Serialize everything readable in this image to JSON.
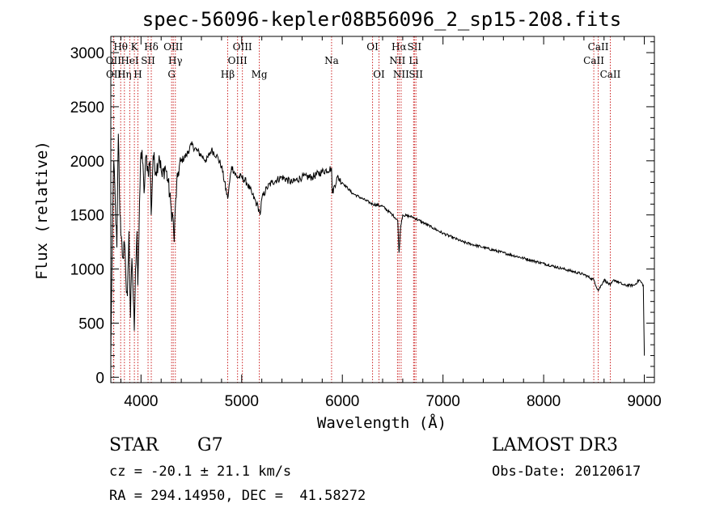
{
  "colors": {
    "spectrum": "#000000",
    "line_marker": "#cc2222",
    "axis": "#000000",
    "background": "#ffffff"
  },
  "chart_data": {
    "type": "line",
    "title": "spec-56096-kepler08B56096_2_sp15-208.fits",
    "xlabel": "Wavelength (Å)",
    "ylabel": "Flux (relative)",
    "xlim": [
      3700,
      9100
    ],
    "ylim": [
      -50,
      3150
    ],
    "xticks": [
      4000,
      5000,
      6000,
      7000,
      8000,
      9000
    ],
    "xtick_labels": [
      "4000",
      "5000",
      "6000",
      "7000",
      "8000",
      "9000"
    ],
    "yticks": [
      0,
      500,
      1000,
      1500,
      2000,
      2500,
      3000
    ],
    "ytick_labels": [
      "0",
      "500",
      "1000",
      "1500",
      "2000",
      "2500",
      "3000"
    ],
    "series": [
      {
        "name": "flux",
        "x": [
          3700,
          3715,
          3730,
          3745,
          3760,
          3775,
          3790,
          3805,
          3820,
          3835,
          3850,
          3865,
          3880,
          3895,
          3910,
          3925,
          3933,
          3945,
          3960,
          3968,
          3980,
          3995,
          4010,
          4030,
          4050,
          4070,
          4090,
          4101,
          4120,
          4150,
          4180,
          4210,
          4240,
          4270,
          4300,
          4320,
          4330,
          4345,
          4370,
          4400,
          4450,
          4500,
          4550,
          4600,
          4650,
          4700,
          4750,
          4800,
          4861,
          4900,
          4950,
          5000,
          5050,
          5100,
          5150,
          5172,
          5183,
          5200,
          5250,
          5300,
          5400,
          5500,
          5600,
          5700,
          5800,
          5893,
          5900,
          5950,
          6000,
          6100,
          6200,
          6300,
          6400,
          6500,
          6550,
          6563,
          6580,
          6600,
          6700,
          6800,
          6900,
          7000,
          7200,
          7400,
          7600,
          7800,
          8000,
          8200,
          8400,
          8498,
          8542,
          8600,
          8662,
          8700,
          8800,
          8900,
          8950,
          8990,
          9000
        ],
        "y": [
          200,
          1300,
          2000,
          1600,
          1200,
          2250,
          1500,
          1300,
          1100,
          1250,
          900,
          750,
          1350,
          550,
          1100,
          700,
          430,
          1000,
          1350,
          850,
          1300,
          2000,
          2100,
          1700,
          2050,
          1900,
          2000,
          1500,
          2050,
          1900,
          2050,
          1850,
          1950,
          1800,
          1550,
          1450,
          1250,
          1650,
          1900,
          2000,
          2050,
          2150,
          2100,
          2050,
          2000,
          2100,
          2050,
          1950,
          1650,
          1950,
          1850,
          1850,
          1800,
          1700,
          1600,
          1550,
          1500,
          1650,
          1750,
          1800,
          1850,
          1800,
          1850,
          1850,
          1900,
          1930,
          1700,
          1850,
          1800,
          1700,
          1650,
          1600,
          1580,
          1500,
          1450,
          1150,
          1400,
          1500,
          1480,
          1430,
          1380,
          1330,
          1250,
          1200,
          1150,
          1100,
          1050,
          1000,
          950,
          900,
          800,
          900,
          850,
          900,
          850,
          850,
          900,
          850,
          200
        ]
      }
    ],
    "line_markers": [
      {
        "label": "Hθ",
        "wavelength": 3798,
        "row": 0
      },
      {
        "label": "OII",
        "wavelength": 3727,
        "row": 1
      },
      {
        "label": "OII",
        "wavelength": 3729,
        "row": 2
      },
      {
        "label": "Hη",
        "wavelength": 3835,
        "row": 2
      },
      {
        "label": "HeI",
        "wavelength": 3889,
        "row": 1
      },
      {
        "label": "K",
        "wavelength": 3934,
        "row": 0
      },
      {
        "label": "H",
        "wavelength": 3969,
        "row": 2
      },
      {
        "label": "SII",
        "wavelength": 4070,
        "row": 1
      },
      {
        "label": "Hδ",
        "wavelength": 4102,
        "row": 0
      },
      {
        "label": "OIII",
        "wavelength": 4320,
        "row": 0
      },
      {
        "label": "Hγ",
        "wavelength": 4341,
        "row": 1
      },
      {
        "label": "G",
        "wavelength": 4304,
        "row": 2
      },
      {
        "label": "Hβ",
        "wavelength": 4861,
        "row": 2
      },
      {
        "label": "OIII",
        "wavelength": 5007,
        "row": 0
      },
      {
        "label": "OIII",
        "wavelength": 4959,
        "row": 1
      },
      {
        "label": "Mg",
        "wavelength": 5175,
        "row": 2
      },
      {
        "label": "Na",
        "wavelength": 5893,
        "row": 1
      },
      {
        "label": "OI",
        "wavelength": 6300,
        "row": 0
      },
      {
        "label": "OI",
        "wavelength": 6364,
        "row": 2
      },
      {
        "label": "Hα",
        "wavelength": 6563,
        "row": 0
      },
      {
        "label": "NII",
        "wavelength": 6548,
        "row": 1
      },
      {
        "label": "NII",
        "wavelength": 6584,
        "row": 2
      },
      {
        "label": "SII",
        "wavelength": 6716,
        "row": 0
      },
      {
        "label": "Li",
        "wavelength": 6708,
        "row": 1
      },
      {
        "label": "SII",
        "wavelength": 6731,
        "row": 2
      },
      {
        "label": "CaII",
        "wavelength": 8542,
        "row": 0
      },
      {
        "label": "CaII",
        "wavelength": 8498,
        "row": 1
      },
      {
        "label": "CaII",
        "wavelength": 8662,
        "row": 2
      }
    ]
  },
  "info": {
    "object_class": "STAR",
    "subclass": "G7",
    "survey": "LAMOST DR3",
    "redshift_line": "cz = -20.1 ± 21.1 km/s",
    "obs_date": "Obs-Date: 20120617",
    "coords": "RA = 294.14950, DEC =  41.58272"
  }
}
